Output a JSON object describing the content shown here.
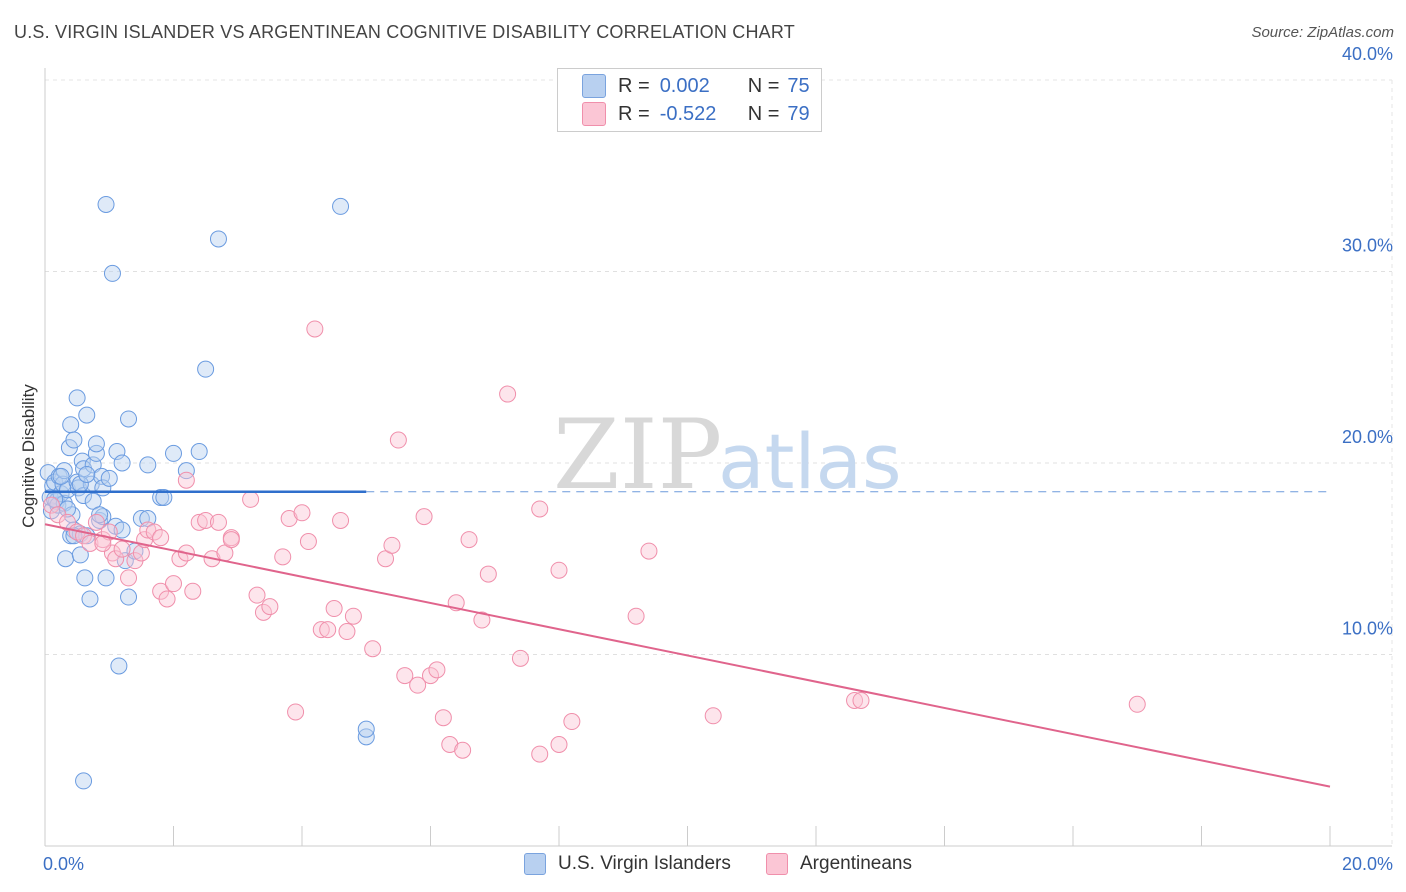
{
  "header": {
    "title": "U.S. VIRGIN ISLANDER VS ARGENTINEAN COGNITIVE DISABILITY CORRELATION CHART",
    "source": "Source: ZipAtlas.com"
  },
  "legend": {
    "row1": {
      "r_label": "R =",
      "r_value": "0.002",
      "n_label": "N =",
      "n_value": "75"
    },
    "row2": {
      "r_label": "R =",
      "r_value": "-0.522",
      "n_label": "N =",
      "n_value": "79"
    }
  },
  "bottom_legend": {
    "series1": "U.S. Virgin Islanders",
    "series2": "Argentineans"
  },
  "watermark": {
    "zip": "ZIP",
    "atlas": "atlas"
  },
  "colors": {
    "blue": "#6a9be0",
    "blue_fill": "#b8d0f0",
    "pink": "#f08fab",
    "pink_fill": "#fbc6d5",
    "blue_line": "#2f6fcc",
    "pink_line": "#e0648c",
    "tick_label": "#3b6fc4"
  },
  "chart_data": {
    "type": "scatter",
    "title": "U.S. VIRGIN ISLANDER VS ARGENTINEAN COGNITIVE DISABILITY CORRELATION CHART",
    "xlabel": "",
    "ylabel": "Cognitive Disability",
    "xlim": [
      0,
      20
    ],
    "ylim": [
      0,
      40
    ],
    "x_tick_labels": [
      "0.0%",
      "20.0%"
    ],
    "y_tick_values": [
      10,
      20,
      30,
      40
    ],
    "y_tick_labels": [
      "10.0%",
      "20.0%",
      "30.0%",
      "40.0%"
    ],
    "grid": true,
    "legend_position": "top-center",
    "series": [
      {
        "name": "U.S. Virgin Islanders",
        "R": 0.002,
        "N": 75,
        "trend": {
          "x": [
            0,
            5
          ],
          "y": [
            18.5,
            18.5
          ],
          "dashed_to": 20
        },
        "points": [
          [
            0.05,
            19.5
          ],
          [
            0.08,
            18.2
          ],
          [
            0.1,
            17.5
          ],
          [
            0.12,
            18.8
          ],
          [
            0.15,
            19.0
          ],
          [
            0.18,
            18.0
          ],
          [
            0.2,
            17.8
          ],
          [
            0.22,
            19.3
          ],
          [
            0.25,
            18.4
          ],
          [
            0.28,
            18.9
          ],
          [
            0.3,
            17.9
          ],
          [
            0.3,
            19.6
          ],
          [
            0.32,
            15.0
          ],
          [
            0.35,
            18.6
          ],
          [
            0.38,
            20.8
          ],
          [
            0.4,
            16.2
          ],
          [
            0.4,
            22.0
          ],
          [
            0.42,
            17.3
          ],
          [
            0.45,
            21.2
          ],
          [
            0.45,
            16.5
          ],
          [
            0.5,
            19.0
          ],
          [
            0.5,
            23.4
          ],
          [
            0.52,
            18.7
          ],
          [
            0.55,
            15.2
          ],
          [
            0.55,
            16.3
          ],
          [
            0.58,
            20.1
          ],
          [
            0.6,
            19.7
          ],
          [
            0.6,
            18.3
          ],
          [
            0.62,
            14.0
          ],
          [
            0.65,
            22.5
          ],
          [
            0.65,
            16.2
          ],
          [
            0.7,
            12.9
          ],
          [
            0.72,
            18.9
          ],
          [
            0.75,
            19.9
          ],
          [
            0.8,
            20.5
          ],
          [
            0.8,
            21.0
          ],
          [
            0.85,
            17.0
          ],
          [
            0.88,
            19.3
          ],
          [
            0.9,
            17.2
          ],
          [
            0.9,
            18.7
          ],
          [
            0.95,
            33.5
          ],
          [
            0.95,
            14.0
          ],
          [
            1.0,
            19.2
          ],
          [
            1.05,
            29.9
          ],
          [
            1.1,
            16.7
          ],
          [
            1.12,
            20.6
          ],
          [
            1.15,
            9.4
          ],
          [
            1.2,
            20.0
          ],
          [
            1.2,
            16.5
          ],
          [
            1.25,
            14.9
          ],
          [
            1.3,
            13.0
          ],
          [
            1.3,
            22.3
          ],
          [
            1.4,
            15.4
          ],
          [
            1.5,
            17.1
          ],
          [
            1.6,
            17.1
          ],
          [
            1.6,
            19.9
          ],
          [
            1.8,
            18.2
          ],
          [
            1.85,
            18.2
          ],
          [
            2.0,
            20.5
          ],
          [
            2.2,
            19.6
          ],
          [
            2.4,
            20.6
          ],
          [
            2.5,
            24.9
          ],
          [
            2.7,
            31.7
          ],
          [
            4.6,
            33.4
          ],
          [
            5.0,
            5.7
          ],
          [
            5.0,
            6.1
          ],
          [
            0.6,
            3.4
          ],
          [
            0.15,
            18.1
          ],
          [
            0.25,
            19.3
          ],
          [
            0.35,
            17.6
          ],
          [
            0.45,
            16.2
          ],
          [
            0.55,
            18.9
          ],
          [
            0.65,
            19.4
          ],
          [
            0.75,
            18.0
          ],
          [
            0.85,
            17.3
          ]
        ]
      },
      {
        "name": "Argentineans",
        "R": -0.522,
        "N": 79,
        "trend": {
          "x": [
            0,
            20
          ],
          "y": [
            16.8,
            3.1
          ]
        },
        "points": [
          [
            0.1,
            17.8
          ],
          [
            0.2,
            17.3
          ],
          [
            0.35,
            16.9
          ],
          [
            0.5,
            16.4
          ],
          [
            0.6,
            16.2
          ],
          [
            0.7,
            15.8
          ],
          [
            0.8,
            16.9
          ],
          [
            0.9,
            16.0
          ],
          [
            1.0,
            16.4
          ],
          [
            1.05,
            15.3
          ],
          [
            1.1,
            15.0
          ],
          [
            1.2,
            15.5
          ],
          [
            1.3,
            14.0
          ],
          [
            1.4,
            14.9
          ],
          [
            1.5,
            15.3
          ],
          [
            1.55,
            16.0
          ],
          [
            1.6,
            16.5
          ],
          [
            1.7,
            16.4
          ],
          [
            1.8,
            16.1
          ],
          [
            1.8,
            13.3
          ],
          [
            1.9,
            12.9
          ],
          [
            2.0,
            13.7
          ],
          [
            2.1,
            15.0
          ],
          [
            2.2,
            15.3
          ],
          [
            2.2,
            19.1
          ],
          [
            2.3,
            13.3
          ],
          [
            2.4,
            16.9
          ],
          [
            2.5,
            17.0
          ],
          [
            2.6,
            15.0
          ],
          [
            2.7,
            16.9
          ],
          [
            2.8,
            15.3
          ],
          [
            2.9,
            16.1
          ],
          [
            2.9,
            16.0
          ],
          [
            3.2,
            18.1
          ],
          [
            3.3,
            13.1
          ],
          [
            3.4,
            12.2
          ],
          [
            3.5,
            12.5
          ],
          [
            3.7,
            15.1
          ],
          [
            3.8,
            17.1
          ],
          [
            3.9,
            7.0
          ],
          [
            4.0,
            17.4
          ],
          [
            4.1,
            15.9
          ],
          [
            4.2,
            27.0
          ],
          [
            4.3,
            11.3
          ],
          [
            4.4,
            11.3
          ],
          [
            4.5,
            12.4
          ],
          [
            4.6,
            17.0
          ],
          [
            4.7,
            11.2
          ],
          [
            4.8,
            12.0
          ],
          [
            5.1,
            10.3
          ],
          [
            5.3,
            15.0
          ],
          [
            5.4,
            15.7
          ],
          [
            5.5,
            21.2
          ],
          [
            5.6,
            8.9
          ],
          [
            5.8,
            8.4
          ],
          [
            5.9,
            17.2
          ],
          [
            6.0,
            8.9
          ],
          [
            6.1,
            9.2
          ],
          [
            6.2,
            6.7
          ],
          [
            6.3,
            5.3
          ],
          [
            6.4,
            12.7
          ],
          [
            6.5,
            5.0
          ],
          [
            6.6,
            16.0
          ],
          [
            6.8,
            11.8
          ],
          [
            6.9,
            14.2
          ],
          [
            7.2,
            23.6
          ],
          [
            7.4,
            9.8
          ],
          [
            7.7,
            17.6
          ],
          [
            7.7,
            4.8
          ],
          [
            8.0,
            14.4
          ],
          [
            8.0,
            5.3
          ],
          [
            8.2,
            6.5
          ],
          [
            9.2,
            12.0
          ],
          [
            9.4,
            15.4
          ],
          [
            10.4,
            6.8
          ],
          [
            12.6,
            7.6
          ],
          [
            12.7,
            7.6
          ],
          [
            17.0,
            7.4
          ],
          [
            0.9,
            15.8
          ]
        ]
      }
    ]
  }
}
